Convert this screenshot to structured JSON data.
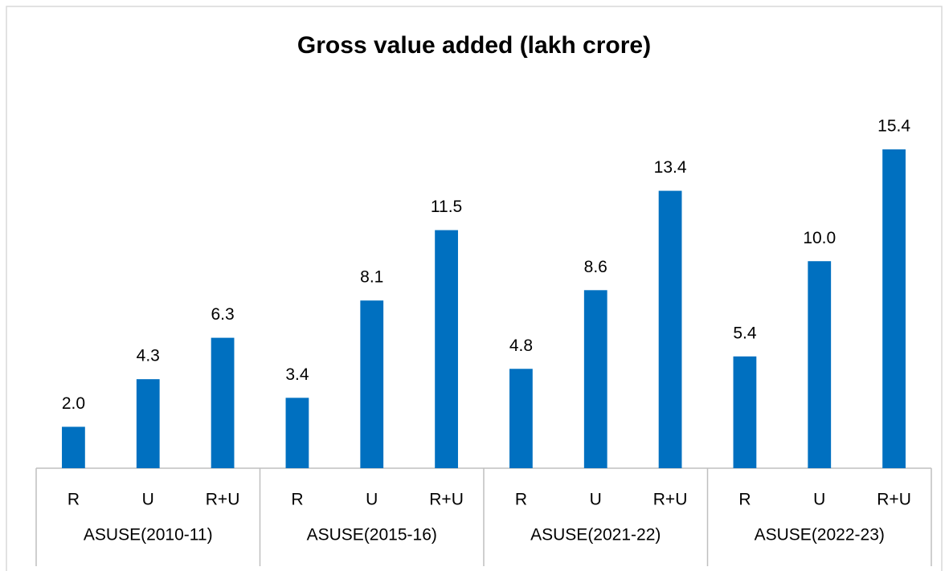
{
  "chart_data": {
    "type": "bar",
    "title": "Gross value added (lakh crore)",
    "categories": [
      "R",
      "U",
      "R+U",
      "R",
      "U",
      "R+U",
      "R",
      "U",
      "R+U",
      "R",
      "U",
      "R+U"
    ],
    "groups": [
      "ASUSE(2010-11)",
      "ASUSE(2015-16)",
      "ASUSE(2021-22)",
      "ASUSE(2022-23)"
    ],
    "values": [
      2.0,
      4.3,
      6.3,
      3.4,
      8.1,
      11.5,
      4.8,
      8.6,
      13.4,
      5.4,
      10.0,
      15.4
    ],
    "value_labels": [
      "2.0",
      "4.3",
      "6.3",
      "3.4",
      "8.1",
      "11.5",
      "4.8",
      "8.6",
      "13.4",
      "5.4",
      "10.0",
      "15.4"
    ],
    "color": "#0070c0",
    "ylim": [
      0,
      18
    ]
  }
}
